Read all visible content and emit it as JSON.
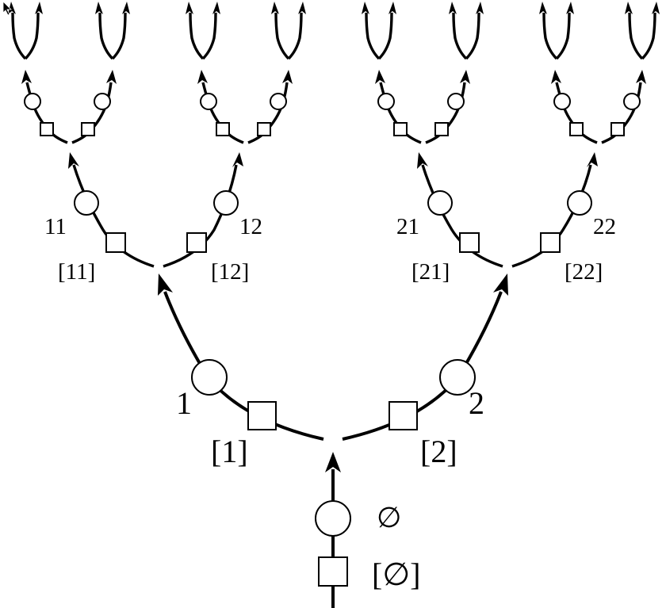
{
  "labels": {
    "root_circle": "∅",
    "root_square": "[∅]",
    "c1": "1",
    "c2": "2",
    "s1": "[1]",
    "s2": "[2]",
    "c11": "11",
    "c12": "12",
    "c21": "21",
    "c22": "22",
    "s11": "[11]",
    "s12": "[12]",
    "s21": "[21]",
    "s22": "[22]"
  }
}
